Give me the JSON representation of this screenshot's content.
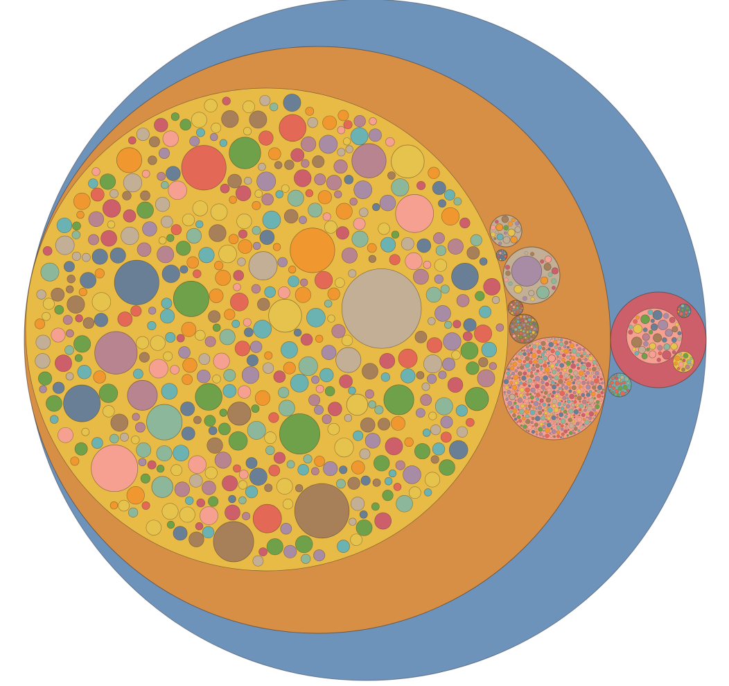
{
  "chart_data": {
    "type": "circle-packing",
    "palette": [
      "#6e93bb",
      "#d78f45",
      "#e8bb47",
      "#6fa14a",
      "#f6a091",
      "#e36856",
      "#a77f58",
      "#687f95",
      "#b7848f",
      "#8db79b",
      "#c3af96",
      "#f0982f",
      "#e6c34c",
      "#a88ba5",
      "#cd5f6b",
      "#6bb2b3"
    ],
    "root": {
      "value": 1000,
      "color": "#6e93bb",
      "children": [
        {
          "value": 620,
          "color": "#d78f45",
          "children": [
            {
              "value": 470,
              "color": "#e8bb47",
              "children": [
                {
                  "value": 70,
                  "color": "#c3af96"
                },
                {
                  "value": 33,
                  "color": "#a77f58"
                },
                {
                  "value": 24,
                  "color": "#f6a091"
                },
                {
                  "value": 22,
                  "color": "#e36856"
                },
                {
                  "value": 22,
                  "color": "#687f95"
                },
                {
                  "value": 22,
                  "color": "#f0982f"
                },
                {
                  "value": 20,
                  "color": "#b7848f"
                },
                {
                  "value": 18,
                  "color": "#a77f58"
                },
                {
                  "value": 18,
                  "color": "#6fa14a"
                },
                {
                  "value": 16,
                  "color": "#f6a091"
                },
                {
                  "value": 15,
                  "color": "#687f95"
                },
                {
                  "value": 14,
                  "color": "#8db79b"
                },
                {
                  "value": 14,
                  "color": "#6fa14a"
                },
                {
                  "value": 13,
                  "color": "#b7848f"
                },
                {
                  "value": 12,
                  "color": "#e6c34c"
                },
                {
                  "value": 12,
                  "color": "#e6c34c"
                },
                {
                  "value": 11,
                  "color": "#6fa14a"
                },
                {
                  "value": 10,
                  "color": "#b7848f"
                },
                {
                  "value": 10,
                  "color": "#6fa14a"
                },
                {
                  "value": 9,
                  "color": "#c3af96"
                },
                {
                  "value": 9,
                  "color": "#e36856"
                },
                {
                  "value": 8,
                  "color": "#6fa14a"
                },
                {
                  "value": 8,
                  "color": "#687f95"
                },
                {
                  "value": 8,
                  "color": "#e36856"
                },
                {
                  "value": 7,
                  "color": "#c3af96"
                },
                {
                  "value": 7,
                  "color": "#f0982f"
                },
                {
                  "value": 6,
                  "color": "#a77f58"
                },
                {
                  "value": 6,
                  "color": "#6fa14a"
                },
                {
                  "value": 5,
                  "color": "#e6c34c"
                },
                {
                  "value": 5,
                  "color": "#8db79b"
                }
              ],
              "fill": {
                "count": 480,
                "min": 0.6,
                "max": 4.0,
                "seed": 7
              }
            }
          ]
        },
        {
          "value": 34,
          "color": "#cd5f6b",
          "children": [
            {
              "value": 8,
              "color": "#f6a091",
              "fill": {
                "count": 40,
                "min": 0.1,
                "max": 0.9,
                "seed": 21
              }
            },
            {
              "value": 3,
              "color": "#e6c34c",
              "fill": {
                "count": 14,
                "min": 0.1,
                "max": 0.6,
                "seed": 22
              }
            },
            {
              "value": 0.5,
              "color": "#687f95",
              "fill": {
                "count": 12,
                "min": 0.02,
                "max": 0.1,
                "seed": 23
              }
            }
          ]
        },
        {
          "value": 36,
          "color": "#f6a091",
          "children": [
            {
              "value": 1.2,
              "color": "#f6a091"
            },
            {
              "value": 0.8,
              "color": "#c3af96"
            }
          ],
          "fill": {
            "count": 520,
            "min": 0.05,
            "max": 0.6,
            "seed": 31
          }
        },
        {
          "value": 11,
          "color": "#c3af96",
          "children": [
            {
              "value": 3.5,
              "color": "#a88ba5"
            },
            {
              "value": 0.6,
              "color": "#8db79b"
            }
          ],
          "fill": {
            "count": 18,
            "min": 0.05,
            "max": 0.25,
            "seed": 32
          }
        },
        {
          "value": 4,
          "color": "#c3af96",
          "fill": {
            "count": 18,
            "min": 0.05,
            "max": 0.6,
            "seed": 33
          }
        },
        {
          "value": 3,
          "color": "#a77f58",
          "fill": {
            "count": 90,
            "min": 0.01,
            "max": 0.08,
            "seed": 34
          }
        },
        {
          "value": 1.5,
          "color": "#6bb2b3",
          "fill": {
            "count": 30,
            "min": 0.01,
            "max": 0.08,
            "seed": 35
          }
        },
        {
          "value": 0.9,
          "color": "#a77f58",
          "fill": {
            "count": 40,
            "min": 0.005,
            "max": 0.05,
            "seed": 36
          }
        },
        {
          "value": 0.4,
          "color": "#687f95",
          "fill": {
            "count": 20,
            "min": 0.005,
            "max": 0.04,
            "seed": 37
          }
        }
      ]
    }
  }
}
